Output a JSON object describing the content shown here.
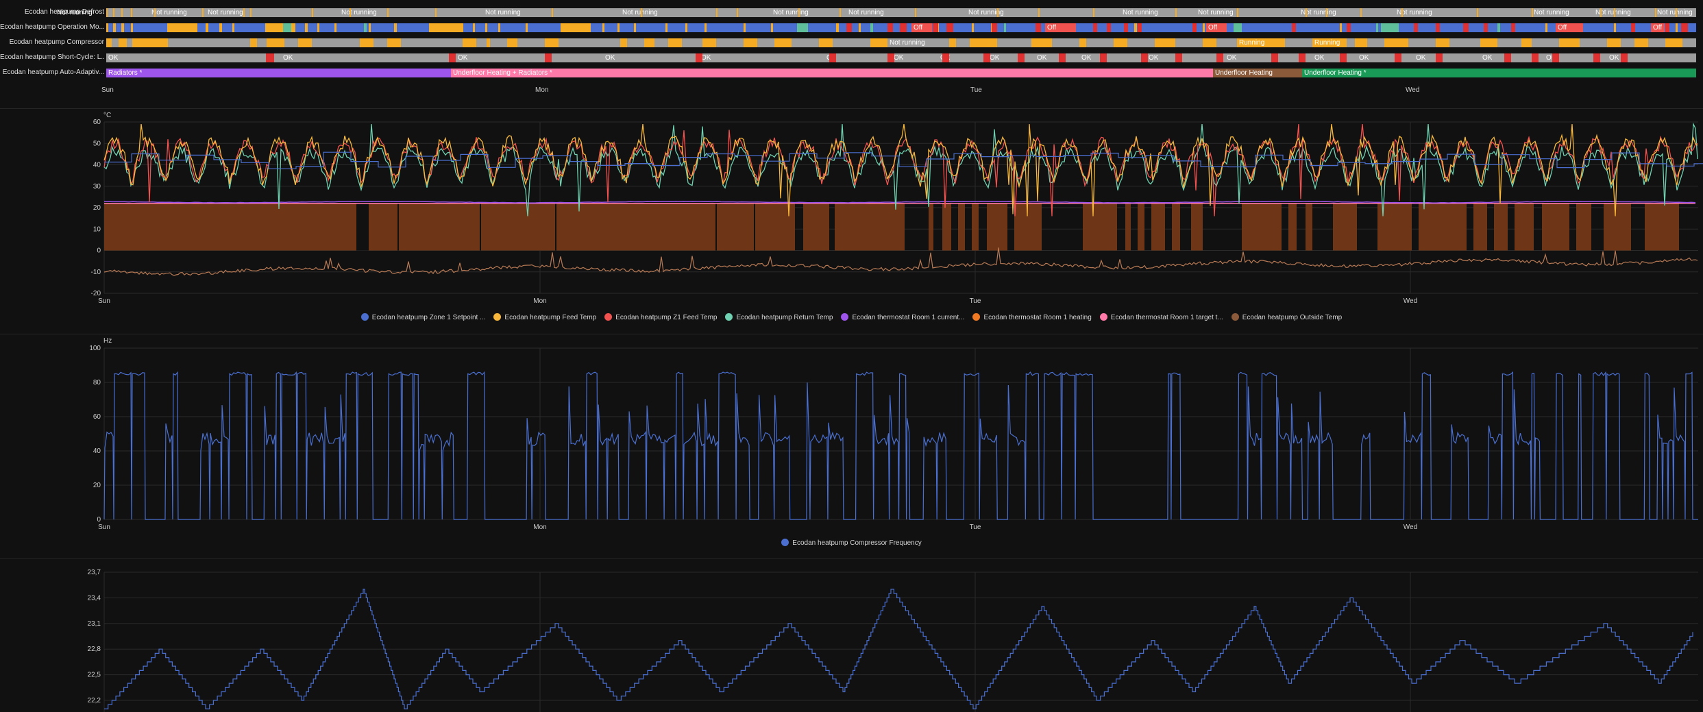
{
  "colors": {
    "background": "#111111",
    "grid": "#2a2a2a",
    "blue": "#4a6fd0",
    "orange_seg": "#f5ac24",
    "off": "#f0524f",
    "gray": "#9e9e9e",
    "teal": "#5fbf9a",
    "red": "#e0302f",
    "purple": "#9e55eb",
    "pink": "#ff7aa8",
    "brown": "#8a5a3b",
    "green": "#1a9a57"
  },
  "timeline": {
    "rows": [
      {
        "label": "Ecodan heatpump Defrost"
      },
      {
        "label": "Ecodan heatpump Operation Mo..."
      },
      {
        "label": "Ecodan heatpump Compressor"
      },
      {
        "label": "Ecodan heatpump Short-Cycle: L..."
      },
      {
        "label": "Ecodan heatpump Auto-Adaptiv..."
      }
    ],
    "state_texts": {
      "not_running": "Not running",
      "running": "Running",
      "off": "Off",
      "ok": "OK",
      "radiators": "Radiators *",
      "underfloor_radiators": "Underfloor Heating + Radiators *",
      "underfloor": "Underfloor Heating",
      "underfloor_star": "Underfloor Heating *"
    },
    "days": [
      "Sun",
      "Mon",
      "Tue",
      "Wed"
    ]
  },
  "temp_chart": {
    "unit": "°C",
    "y_ticks": [
      "60",
      "50",
      "40",
      "30",
      "20",
      "10",
      "0",
      "-10",
      "-20"
    ],
    "days": [
      "Sun",
      "Mon",
      "Tue",
      "Wed"
    ],
    "legend": [
      {
        "label": "Ecodan heatpump Zone 1 Setpoint ...",
        "color": "#4a6fd0"
      },
      {
        "label": "Ecodan heatpump Feed Temp",
        "color": "#f6b73c"
      },
      {
        "label": "Ecodan heatpump Z1 Feed Temp",
        "color": "#f0524f"
      },
      {
        "label": "Ecodan heatpump Return Temp",
        "color": "#6fd1b1"
      },
      {
        "label": "Ecodan thermostat Room 1 current...",
        "color": "#9e55eb"
      },
      {
        "label": "Ecodan thermostat Room 1 heating",
        "color": "#f07a24"
      },
      {
        "label": "Ecodan thermostat Room 1 target t...",
        "color": "#ff7aa8"
      },
      {
        "label": "Ecodan heatpump Outside Temp",
        "color": "#8a5a3b"
      }
    ]
  },
  "freq_chart": {
    "unit": "Hz",
    "y_ticks": [
      "100",
      "80",
      "60",
      "40",
      "20",
      "0"
    ],
    "days": [
      "Sun",
      "Mon",
      "Tue",
      "Wed"
    ],
    "legend": [
      {
        "label": "Ecodan heatpump Compressor Frequency",
        "color": "#4a6fd0"
      }
    ]
  },
  "room_chart": {
    "y_ticks": [
      "23,7",
      "23,4",
      "23,1",
      "22,8",
      "22,5",
      "22,2"
    ]
  }
}
